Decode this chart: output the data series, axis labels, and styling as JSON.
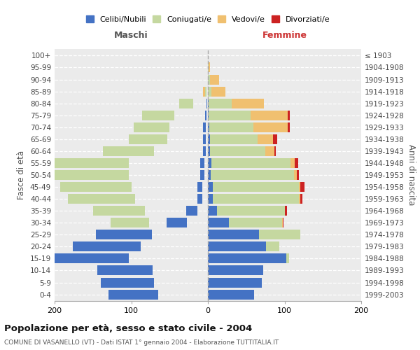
{
  "age_groups": [
    "0-4",
    "5-9",
    "10-14",
    "15-19",
    "20-24",
    "25-29",
    "30-34",
    "35-39",
    "40-44",
    "45-49",
    "50-54",
    "55-59",
    "60-64",
    "65-69",
    "70-74",
    "75-79",
    "80-84",
    "85-89",
    "90-94",
    "95-99",
    "100+"
  ],
  "birth_years": [
    "1999-2003",
    "1994-1998",
    "1989-1993",
    "1984-1988",
    "1979-1983",
    "1974-1978",
    "1969-1973",
    "1964-1968",
    "1959-1963",
    "1954-1958",
    "1949-1953",
    "1944-1948",
    "1939-1943",
    "1934-1938",
    "1929-1933",
    "1924-1928",
    "1919-1923",
    "1914-1918",
    "1909-1913",
    "1904-1908",
    "≤ 1903"
  ],
  "male": {
    "celibi": [
      65,
      70,
      72,
      103,
      88,
      73,
      27,
      14,
      7,
      7,
      5,
      5,
      3,
      3,
      3,
      2,
      1,
      0,
      0,
      0,
      0
    ],
    "coniugati": [
      0,
      0,
      0,
      2,
      8,
      20,
      50,
      68,
      88,
      93,
      98,
      98,
      67,
      50,
      47,
      42,
      18,
      2,
      0,
      0,
      0
    ],
    "vedovi": [
      0,
      0,
      0,
      0,
      0,
      0,
      0,
      0,
      0,
      0,
      2,
      2,
      3,
      5,
      8,
      8,
      5,
      2,
      0,
      0,
      0
    ],
    "divorziati": [
      0,
      0,
      0,
      0,
      0,
      1,
      2,
      4,
      3,
      4,
      2,
      5,
      1,
      0,
      0,
      0,
      0,
      0,
      0,
      0,
      0
    ]
  },
  "female": {
    "nubili": [
      60,
      70,
      72,
      102,
      76,
      67,
      27,
      12,
      6,
      6,
      4,
      5,
      3,
      3,
      2,
      1,
      1,
      0,
      0,
      0,
      0
    ],
    "coniugate": [
      0,
      0,
      0,
      4,
      17,
      54,
      70,
      88,
      113,
      113,
      108,
      103,
      72,
      62,
      57,
      55,
      30,
      5,
      3,
      1,
      0
    ],
    "vedove": [
      0,
      0,
      0,
      0,
      0,
      0,
      1,
      0,
      2,
      2,
      4,
      5,
      12,
      20,
      45,
      48,
      42,
      18,
      12,
      2,
      0
    ],
    "divorziate": [
      0,
      0,
      0,
      0,
      0,
      0,
      1,
      3,
      2,
      5,
      3,
      5,
      2,
      5,
      3,
      3,
      0,
      0,
      0,
      0,
      0
    ]
  },
  "colors": {
    "celibi_nubili": "#4472c4",
    "coniugati": "#c5d8a0",
    "vedovi": "#f0c070",
    "divorziati": "#cc2222"
  },
  "title": "Popolazione per età, sesso e stato civile - 2004",
  "subtitle": "COMUNE DI VASANELLO (VT) - Dati ISTAT 1° gennaio 2004 - Elaborazione TUTTITALIA.IT",
  "xlabel_left": "Maschi",
  "xlabel_right": "Femmine",
  "ylabel_left": "Fasce di età",
  "ylabel_right": "Anni di nascita",
  "legend_labels": [
    "Celibi/Nubili",
    "Coniugati/e",
    "Vedovi/e",
    "Divorziati/e"
  ],
  "xlim": 200,
  "background_color": "#ffffff",
  "bar_height": 0.82
}
